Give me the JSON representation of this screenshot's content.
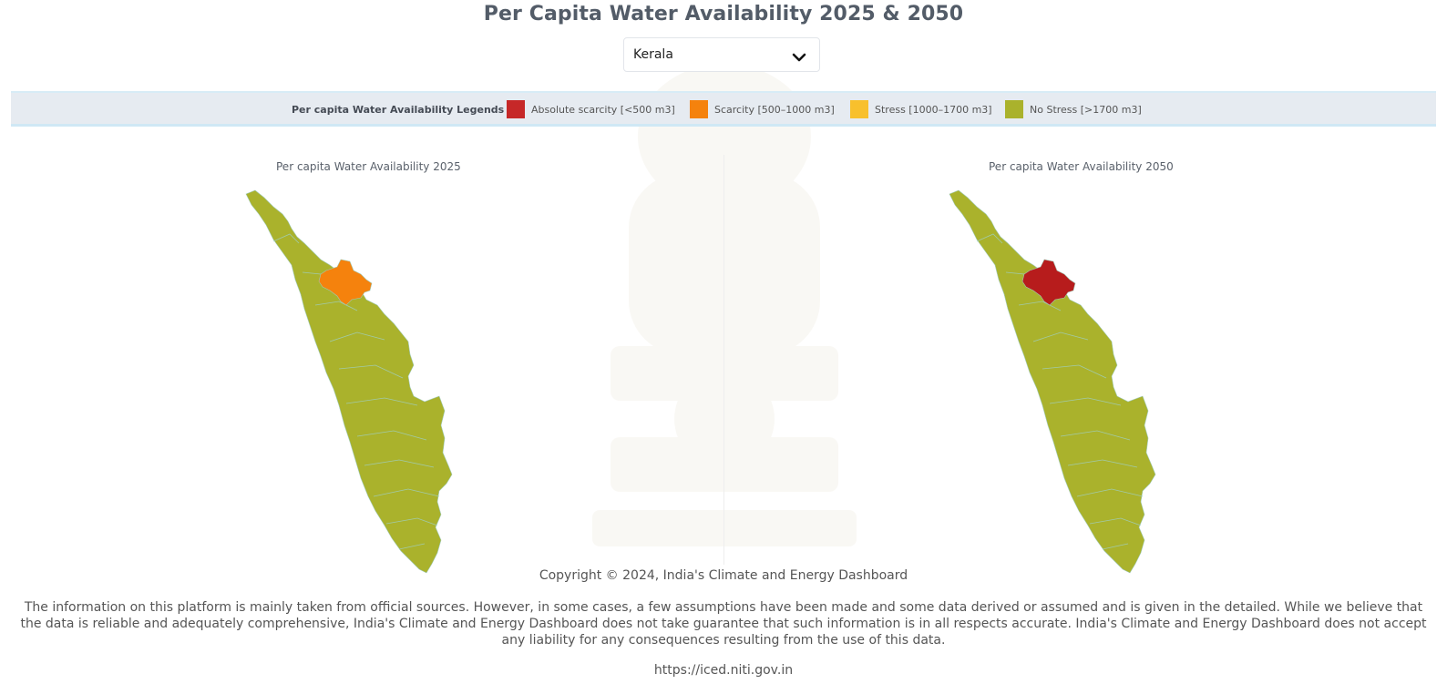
{
  "page": {
    "title": "Per Capita Water Availability 2025 & 2050"
  },
  "state_select": {
    "value": "Kerala",
    "icon": "chevron-down-icon"
  },
  "legend": {
    "title": "Per capita Water Availability Legends",
    "items": [
      {
        "label": "Absolute scarcity [<500 m3]",
        "color": "#c62828"
      },
      {
        "label": "Scarcity [500–1000 m3]",
        "color": "#f5820d"
      },
      {
        "label": "Stress [1000–1700 m3]",
        "color": "#f8c02d"
      },
      {
        "label": "No Stress [>1700 m3]",
        "color": "#aab22c"
      }
    ]
  },
  "maps": [
    {
      "title": "Per capita Water Availability 2025",
      "base_category": "No Stress [>1700 m3]",
      "highlight_category": "Scarcity [500–1000 m3]",
      "base_color": "#aab22c",
      "highlight_color": "#f5820d"
    },
    {
      "title": "Per capita Water Availability 2050",
      "base_category": "No Stress [>1700 m3]",
      "highlight_category": "Absolute scarcity [<500 m3]",
      "base_color": "#aab22c",
      "highlight_color": "#b71c1c"
    }
  ],
  "footer": {
    "copyright": "Copyright © 2024, India's Climate and Energy Dashboard",
    "disclaimer": "The information on this platform is mainly taken from official sources. However, in some cases, a few assumptions have been made and some data derived or assumed and is given in the detailed. While we believe that the data is reliable and adequately comprehensive, India's Climate and Energy Dashboard does not take guarantee that such information is in all respects accurate. India's Climate and Energy Dashboard does not accept any liability for any consequences resulting from the use of this data.",
    "url": "https://iced.niti.gov.in"
  }
}
